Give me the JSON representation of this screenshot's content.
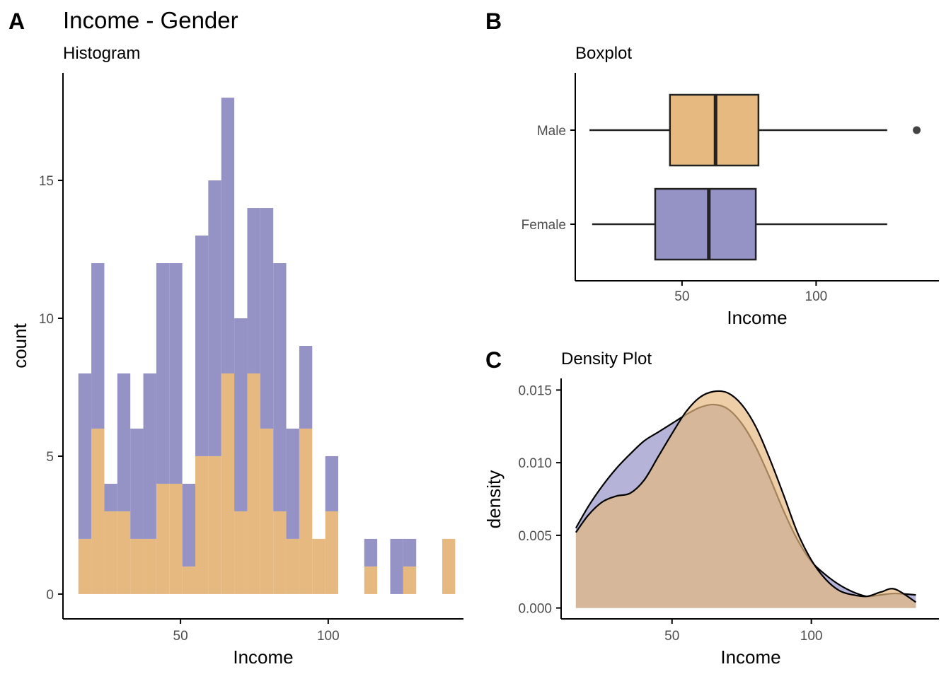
{
  "panels": {
    "a": {
      "tag": "A",
      "title": "Income - Gender",
      "subtitle": "Histogram",
      "xlabel": "Income",
      "ylabel": "count"
    },
    "b": {
      "tag": "B",
      "subtitle": "Boxplot",
      "xlabel": "Income"
    },
    "c": {
      "tag": "C",
      "subtitle": "Density Plot",
      "xlabel": "Income",
      "ylabel": "density"
    }
  },
  "colors": {
    "female": "#9593c6",
    "male": "#e6b980",
    "overlap": "#ad8063",
    "axis": "#000000",
    "tick_text": "#4d4d4d"
  },
  "chart_data": [
    {
      "type": "bar",
      "stacked": true,
      "title": "Histogram",
      "xlabel": "Income",
      "ylabel": "count",
      "xlim": [
        10.2,
        145.8
      ],
      "ylim": [
        -0.9,
        18.9
      ],
      "x_ticks": [
        50,
        100
      ],
      "y_ticks": [
        0,
        5,
        10,
        15
      ],
      "bin_starts": [
        15.4,
        19.8,
        24.2,
        28.6,
        33.0,
        37.4,
        41.8,
        46.2,
        50.6,
        55.0,
        59.4,
        63.8,
        68.2,
        72.6,
        77.0,
        81.4,
        85.8,
        90.2,
        94.6,
        99.0,
        103.4,
        107.8,
        112.2,
        116.6,
        121.0,
        125.4,
        129.8,
        134.2,
        138.6
      ],
      "bin_width": 4.4,
      "series": [
        {
          "name": "Male",
          "values": [
            2,
            6,
            3,
            3,
            2,
            2,
            4,
            4,
            1,
            5,
            5,
            8,
            3,
            8,
            6,
            3,
            2,
            6,
            2,
            3,
            0,
            0,
            1,
            0,
            0,
            1,
            0,
            0,
            2
          ]
        },
        {
          "name": "Female",
          "values": [
            6,
            6,
            1,
            5,
            4,
            6,
            8,
            8,
            3,
            8,
            10,
            10,
            7,
            6,
            8,
            9,
            4,
            3,
            0,
            2,
            0,
            0,
            1,
            0,
            2,
            1,
            0,
            0,
            0
          ]
        }
      ]
    },
    {
      "type": "boxplot",
      "title": "Boxplot",
      "xlabel": "Income",
      "xlim": [
        10.2,
        145.8
      ],
      "x_ticks": [
        50,
        100
      ],
      "categories": [
        "Male",
        "Female"
      ],
      "boxes": [
        {
          "name": "Male",
          "whisker_low": 15.5,
          "q1": 45.5,
          "median": 62.5,
          "q3": 78.5,
          "whisker_high": 126.5,
          "outliers": [
            137.5
          ]
        },
        {
          "name": "Female",
          "whisker_low": 16.5,
          "q1": 40.0,
          "median": 60.0,
          "q3": 77.5,
          "whisker_high": 126.5,
          "outliers": []
        }
      ]
    },
    {
      "type": "area",
      "title": "Density Plot",
      "xlabel": "Income",
      "ylabel": "density",
      "xlim": [
        10.2,
        145.8
      ],
      "ylim": [
        -0.00075,
        0.0158
      ],
      "x_ticks": [
        50,
        100
      ],
      "y_ticks": [
        0.0,
        0.005,
        0.01,
        0.015
      ],
      "y_tick_labels": [
        "0.000",
        "0.005",
        "0.010",
        "0.015"
      ],
      "x": [
        15.5,
        20,
        25,
        30,
        35,
        40,
        45,
        50,
        55,
        60,
        65,
        70,
        75,
        80,
        85,
        90,
        95,
        100,
        105,
        110,
        115,
        120,
        125,
        130,
        137.5
      ],
      "series": [
        {
          "name": "Female",
          "values": [
            0.0055,
            0.007,
            0.0084,
            0.0096,
            0.0106,
            0.0115,
            0.0121,
            0.0127,
            0.0133,
            0.0138,
            0.014,
            0.0137,
            0.0127,
            0.0111,
            0.009,
            0.0067,
            0.0047,
            0.0032,
            0.0023,
            0.0016,
            0.0011,
            0.0008,
            0.0009,
            0.001,
            0.0009
          ]
        },
        {
          "name": "Male",
          "values": [
            0.0052,
            0.0064,
            0.0073,
            0.0077,
            0.0079,
            0.0088,
            0.0104,
            0.012,
            0.0135,
            0.0145,
            0.0149,
            0.0148,
            0.014,
            0.0125,
            0.0103,
            0.0078,
            0.0052,
            0.0033,
            0.002,
            0.0012,
            0.0009,
            0.0008,
            0.0011,
            0.0013,
            0.0004
          ]
        }
      ]
    }
  ]
}
